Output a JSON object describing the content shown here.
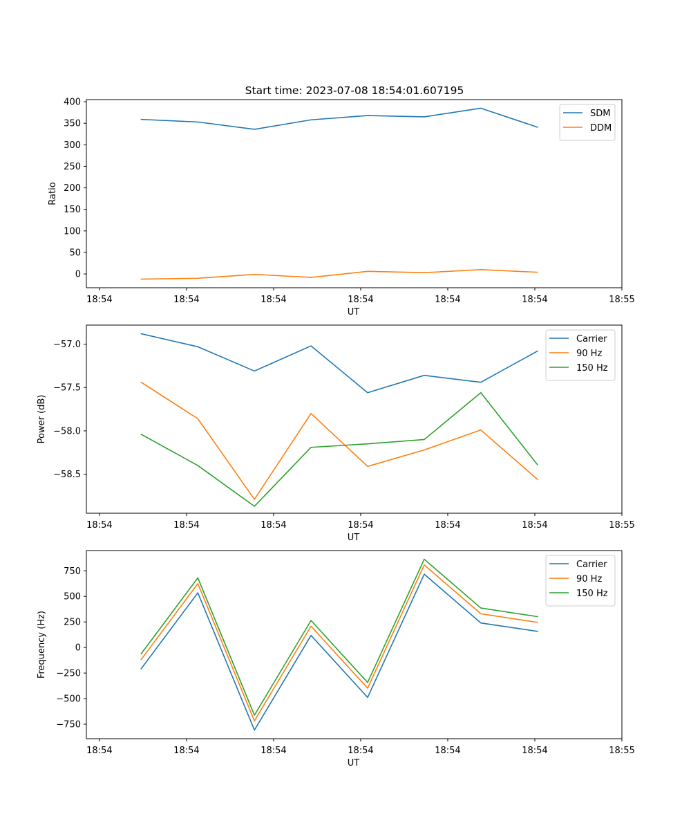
{
  "figure_title": "Start time: 2023-07-08 18:54:01.607195",
  "chart_data": [
    {
      "type": "line",
      "title": "Start time: 2023-07-08 18:54:01.607195",
      "xlabel": "UT",
      "ylabel": "Ratio",
      "x_tick_labels": [
        "18:54",
        "18:54",
        "18:54",
        "18:54",
        "18:54",
        "18:54",
        "18:55"
      ],
      "x_ticks": [
        0,
        1,
        2,
        3,
        4,
        5,
        6
      ],
      "xlim": [
        -0.15,
        6.0
      ],
      "x": [
        0.48,
        1.13,
        1.78,
        2.43,
        3.08,
        3.73,
        4.38,
        5.03
      ],
      "ylim": [
        -32,
        405
      ],
      "y_ticks": [
        0,
        50,
        100,
        150,
        200,
        250,
        300,
        350,
        400
      ],
      "legend_position": "top-right",
      "series": [
        {
          "name": "SDM",
          "color": "#1f77b4",
          "values": [
            359,
            353,
            336,
            358,
            368,
            365,
            385,
            341
          ]
        },
        {
          "name": "DDM",
          "color": "#ff7f0e",
          "values": [
            -12,
            -10,
            -1,
            -8,
            6,
            3,
            10,
            4
          ]
        }
      ]
    },
    {
      "type": "line",
      "title": "",
      "xlabel": "UT",
      "ylabel": "Power (dB)",
      "x_tick_labels": [
        "18:54",
        "18:54",
        "18:54",
        "18:54",
        "18:54",
        "18:54",
        "18:55"
      ],
      "x_ticks": [
        0,
        1,
        2,
        3,
        4,
        5,
        6
      ],
      "xlim": [
        -0.15,
        6.0
      ],
      "x": [
        0.48,
        1.13,
        1.78,
        2.43,
        3.08,
        3.73,
        4.38,
        5.03
      ],
      "ylim": [
        -58.95,
        -56.78
      ],
      "y_ticks": [
        -57.0,
        -57.5,
        -58.0,
        -58.5
      ],
      "y_tick_labels": [
        "−57.0",
        "−57.5",
        "−58.0",
        "−58.5"
      ],
      "legend_position": "top-right",
      "series": [
        {
          "name": "Carrier",
          "color": "#1f77b4",
          "values": [
            -56.88,
            -57.03,
            -57.31,
            -57.02,
            -57.56,
            -57.36,
            -57.44,
            -57.08
          ]
        },
        {
          "name": "90 Hz",
          "color": "#ff7f0e",
          "values": [
            -57.44,
            -57.86,
            -58.79,
            -57.8,
            -58.41,
            -58.22,
            -57.99,
            -58.56
          ]
        },
        {
          "name": "150 Hz",
          "color": "#2ca02c",
          "values": [
            -58.04,
            -58.4,
            -58.87,
            -58.19,
            -58.15,
            -58.1,
            -57.56,
            -58.39
          ]
        }
      ]
    },
    {
      "type": "line",
      "title": "",
      "xlabel": "UT",
      "ylabel": "Frequency (Hz)",
      "x_tick_labels": [
        "18:54",
        "18:54",
        "18:54",
        "18:54",
        "18:54",
        "18:54",
        "18:55"
      ],
      "x_ticks": [
        0,
        1,
        2,
        3,
        4,
        5,
        6
      ],
      "xlim": [
        -0.15,
        6.0
      ],
      "x": [
        0.48,
        1.13,
        1.78,
        2.43,
        3.08,
        3.73,
        4.38,
        5.03
      ],
      "ylim": [
        -892,
        948
      ],
      "y_ticks": [
        750,
        500,
        250,
        0,
        -250,
        -500,
        -750
      ],
      "y_tick_labels": [
        "750",
        "500",
        "250",
        "0",
        "−250",
        "−500",
        "−750"
      ],
      "legend_position": "top-right",
      "series": [
        {
          "name": "Carrier",
          "color": "#1f77b4",
          "values": [
            -207,
            535,
            -808,
            118,
            -488,
            717,
            240,
            158
          ]
        },
        {
          "name": "90 Hz",
          "color": "#ff7f0e",
          "values": [
            -117,
            625,
            -718,
            208,
            -398,
            807,
            330,
            246
          ]
        },
        {
          "name": "150 Hz",
          "color": "#2ca02c",
          "values": [
            -61,
            681,
            -662,
            264,
            -342,
            863,
            386,
            302
          ]
        }
      ]
    }
  ]
}
